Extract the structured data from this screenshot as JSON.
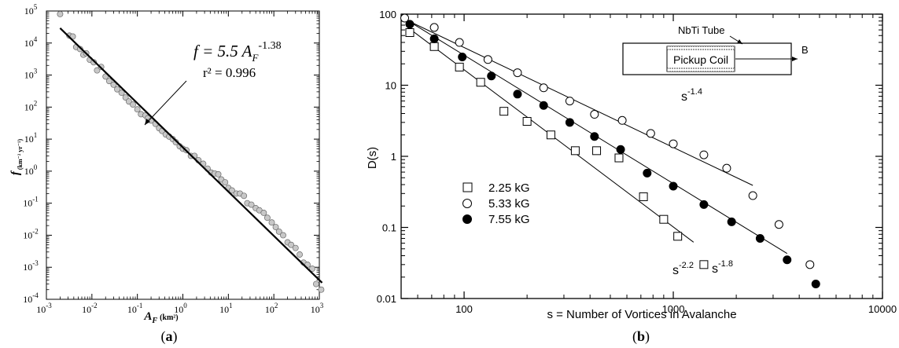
{
  "panel_labels": {
    "a": "(a)",
    "b": "(b)"
  },
  "chart_data": [
    {
      "type": "scatter",
      "panel": "a",
      "xlabel_main": "A",
      "xlabel_sub": "F",
      "xlabel_unit": "(km²)",
      "ylabel_main": "f",
      "ylabel_unit": "(km⁻² yr⁻¹)",
      "xscale": "log",
      "yscale": "log",
      "xlim": [
        0.001,
        1000
      ],
      "ylim": [
        0.0001,
        100000
      ],
      "x_tick_exponents": [
        -3,
        -2,
        -1,
        0,
        1,
        2,
        3
      ],
      "y_tick_exponents": [
        -4,
        -3,
        -2,
        -1,
        0,
        1,
        2,
        3,
        4,
        5
      ],
      "fit_line": {
        "coef": 5.5,
        "exponent": -1.38,
        "x_from": 0.002,
        "x_to": 1150
      },
      "annotation": {
        "eq_lhs": "f = 5.5 A",
        "eq_sub": "F",
        "eq_sup": "-1.38",
        "r2": "r² = 0.996"
      },
      "points": [
        [
          0.002,
          80000
        ],
        [
          0.0032,
          17000
        ],
        [
          0.0038,
          16000
        ],
        [
          0.0045,
          7500
        ],
        [
          0.0055,
          6500
        ],
        [
          0.0065,
          4300
        ],
        [
          0.0075,
          4800
        ],
        [
          0.009,
          3000
        ],
        [
          0.011,
          2500
        ],
        [
          0.013,
          1400
        ],
        [
          0.016,
          1800
        ],
        [
          0.02,
          900
        ],
        [
          0.024,
          650
        ],
        [
          0.03,
          500
        ],
        [
          0.036,
          360
        ],
        [
          0.045,
          280
        ],
        [
          0.055,
          200
        ],
        [
          0.065,
          150
        ],
        [
          0.08,
          120
        ],
        [
          0.1,
          85
        ],
        [
          0.12,
          60
        ],
        [
          0.15,
          55
        ],
        [
          0.17,
          45
        ],
        [
          0.2,
          38
        ],
        [
          0.25,
          30
        ],
        [
          0.3,
          22
        ],
        [
          0.35,
          18
        ],
        [
          0.42,
          14
        ],
        [
          0.5,
          12
        ],
        [
          0.6,
          10
        ],
        [
          0.7,
          8
        ],
        [
          0.85,
          6
        ],
        [
          1.0,
          5
        ],
        [
          1.2,
          4.5
        ],
        [
          1.5,
          3
        ],
        [
          1.8,
          3
        ],
        [
          2.2,
          2.2
        ],
        [
          2.8,
          1.7
        ],
        [
          3.5,
          1.2
        ],
        [
          4.2,
          0.9
        ],
        [
          5.0,
          0.85
        ],
        [
          6.0,
          0.8
        ],
        [
          7.0,
          0.55
        ],
        [
          8.5,
          0.45
        ],
        [
          10,
          0.3
        ],
        [
          12,
          0.25
        ],
        [
          15,
          0.2
        ],
        [
          18,
          0.2
        ],
        [
          22,
          0.17
        ],
        [
          26,
          0.1
        ],
        [
          32,
          0.09
        ],
        [
          40,
          0.07
        ],
        [
          48,
          0.06
        ],
        [
          60,
          0.05
        ],
        [
          72,
          0.035
        ],
        [
          90,
          0.025
        ],
        [
          110,
          0.018
        ],
        [
          130,
          0.013
        ],
        [
          160,
          0.01
        ],
        [
          200,
          0.006
        ],
        [
          240,
          0.005
        ],
        [
          300,
          0.004
        ],
        [
          370,
          0.0025
        ],
        [
          450,
          0.0014
        ],
        [
          550,
          0.0012
        ],
        [
          700,
          0.0009
        ],
        [
          850,
          0.0003
        ],
        [
          1100,
          0.0002
        ]
      ]
    },
    {
      "type": "scatter",
      "panel": "b",
      "xlabel": "s = Number of Vortices in Avalanche",
      "ylabel": "D(s)",
      "xscale": "log",
      "yscale": "log",
      "xlim": [
        50,
        10000
      ],
      "ylim": [
        0.01,
        100
      ],
      "x_ticks": [
        100,
        1000,
        10000
      ],
      "x_tick_labels": [
        "100",
        "1000",
        "10000"
      ],
      "y_ticks": [
        0.01,
        0.1,
        1,
        10,
        100
      ],
      "y_tick_labels": [
        "0.01",
        "0.1",
        "1",
        "10",
        "100"
      ],
      "legend_position": "left-center",
      "inset": {
        "tube_label": "NbTi Tube",
        "coil_label": "Pickup Coil",
        "field_label": "B"
      },
      "series": [
        {
          "name": "2.25 kG",
          "marker": "open-square",
          "points": [
            [
              55,
              55
            ],
            [
              72,
              35
            ],
            [
              95,
              18
            ],
            [
              120,
              11
            ],
            [
              155,
              4.3
            ],
            [
              200,
              3.1
            ],
            [
              260,
              2.0
            ],
            [
              340,
              1.2
            ],
            [
              430,
              1.2
            ],
            [
              550,
              0.95
            ],
            [
              720,
              0.27
            ],
            [
              900,
              0.13
            ],
            [
              1050,
              0.075
            ],
            [
              1400,
              0.03
            ]
          ],
          "fit": {
            "x_from": 55,
            "x_to": 1250,
            "y_from": 62,
            "y_to": 0.062,
            "label": "s",
            "label_sup": "-2.2"
          }
        },
        {
          "name": "5.33 kG",
          "marker": "open-circle",
          "points": [
            [
              52,
              88
            ],
            [
              72,
              65
            ],
            [
              95,
              40
            ],
            [
              130,
              23
            ],
            [
              180,
              15
            ],
            [
              240,
              9.2
            ],
            [
              320,
              6.0
            ],
            [
              420,
              3.9
            ],
            [
              570,
              3.2
            ],
            [
              780,
              2.1
            ],
            [
              1000,
              1.5
            ],
            [
              1400,
              1.05
            ],
            [
              1800,
              0.68
            ],
            [
              2400,
              0.28
            ],
            [
              3200,
              0.11
            ],
            [
              4500,
              0.03
            ]
          ],
          "fit": {
            "x_from": 52,
            "x_to": 2400,
            "y_from": 85,
            "y_to": 0.39,
            "label": "s",
            "label_sup": "-1.4"
          }
        },
        {
          "name": "7.55 kG",
          "marker": "filled-circle",
          "points": [
            [
              55,
              72
            ],
            [
              72,
              45
            ],
            [
              98,
              25
            ],
            [
              135,
              13.5
            ],
            [
              180,
              7.5
            ],
            [
              240,
              5.2
            ],
            [
              320,
              3.0
            ],
            [
              420,
              1.9
            ],
            [
              560,
              1.25
            ],
            [
              750,
              0.58
            ],
            [
              1000,
              0.38
            ],
            [
              1400,
              0.21
            ],
            [
              1900,
              0.12
            ],
            [
              2600,
              0.07
            ],
            [
              3500,
              0.035
            ],
            [
              4800,
              0.016
            ]
          ],
          "fit": {
            "x_from": 55,
            "x_to": 3500,
            "y_from": 78,
            "y_to": 0.043,
            "label": "s",
            "label_sup": "-1.8"
          }
        }
      ]
    }
  ]
}
